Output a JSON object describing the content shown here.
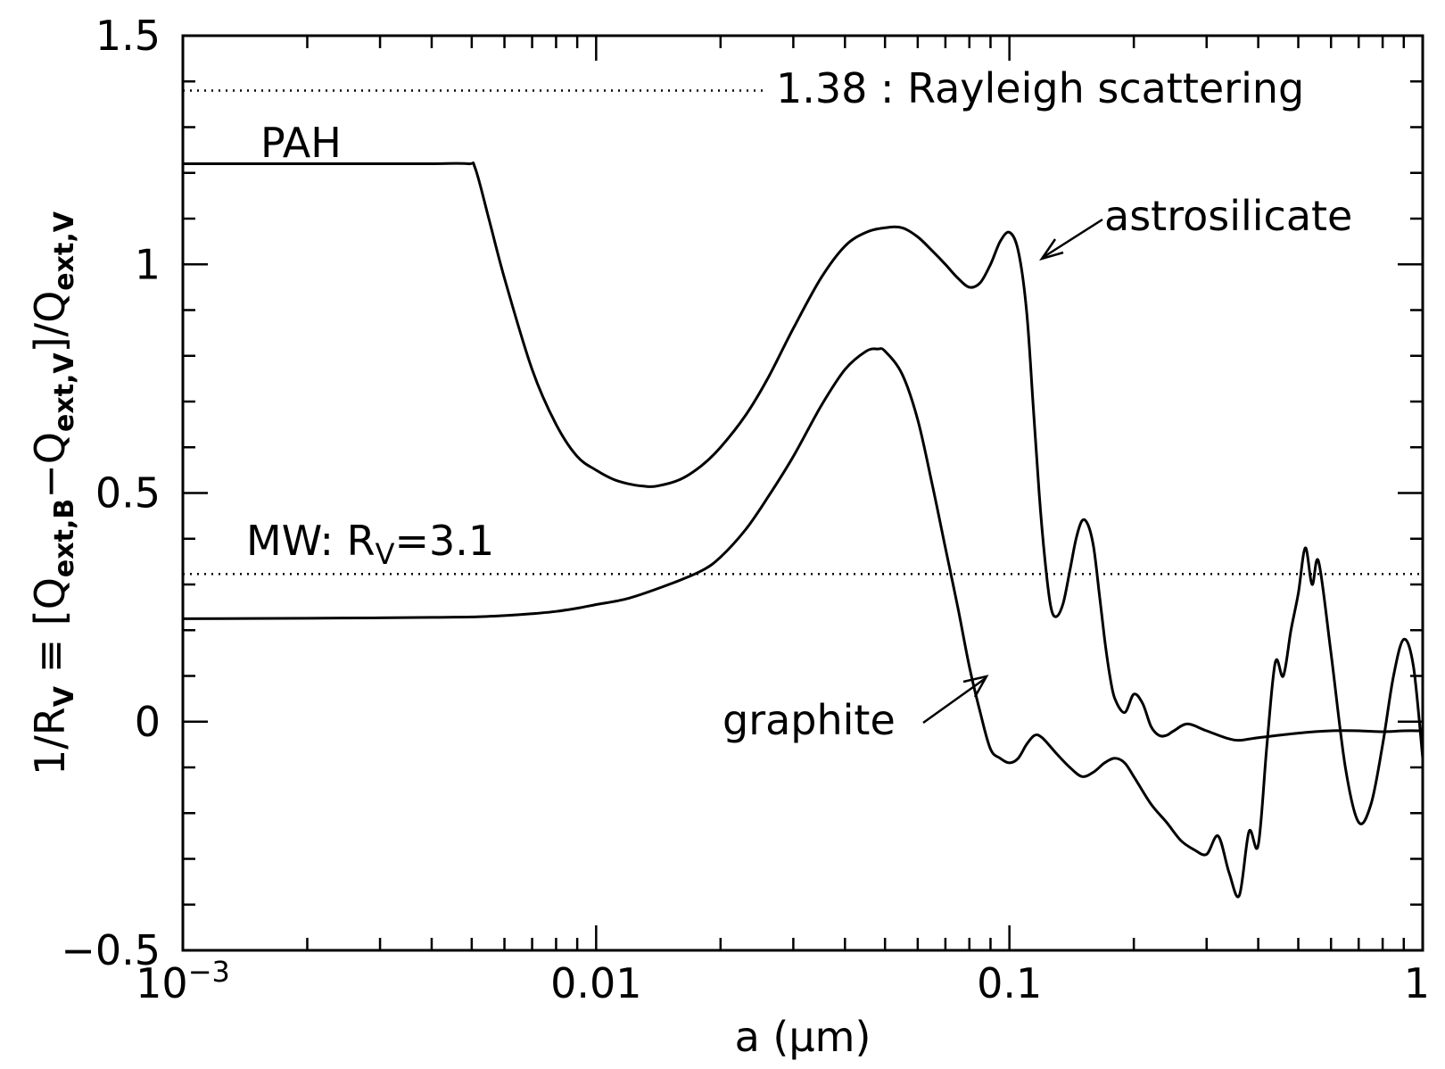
{
  "chart_data": {
    "type": "line",
    "title": "",
    "xlabel": "a (μm)",
    "ylabel": "1/R_V ≡ [Q_ext,B − Q_ext,V]/Q_ext,V",
    "x_scale": "log",
    "xlim": [
      0.001,
      1
    ],
    "ylim": [
      -0.5,
      1.5
    ],
    "grid": false,
    "x_ticks": [
      {
        "value": 0.001,
        "label": "10",
        "sup": "−3"
      },
      {
        "value": 0.01,
        "label": "0.01",
        "sup": ""
      },
      {
        "value": 0.1,
        "label": "0.1",
        "sup": ""
      },
      {
        "value": 1,
        "label": "1",
        "sup": ""
      }
    ],
    "y_ticks": [
      {
        "value": -0.5,
        "label": "−0.5"
      },
      {
        "value": 0,
        "label": "0"
      },
      {
        "value": 0.5,
        "label": "0.5"
      },
      {
        "value": 1,
        "label": "1"
      },
      {
        "value": 1.5,
        "label": "1.5"
      }
    ],
    "series": [
      {
        "name": "PAH / astrosilicate",
        "x": [
          0.001,
          0.002,
          0.003,
          0.004,
          0.0049,
          0.0051,
          0.0055,
          0.006,
          0.007,
          0.008,
          0.009,
          0.01,
          0.011,
          0.012,
          0.013,
          0.014,
          0.016,
          0.018,
          0.02,
          0.023,
          0.026,
          0.03,
          0.035,
          0.04,
          0.045,
          0.05,
          0.055,
          0.06,
          0.065,
          0.07,
          0.075,
          0.08,
          0.085,
          0.09,
          0.095,
          0.1,
          0.105,
          0.11,
          0.114,
          0.118,
          0.122,
          0.126,
          0.13,
          0.135,
          0.14,
          0.145,
          0.15,
          0.155,
          0.16,
          0.165,
          0.17,
          0.175,
          0.18,
          0.19,
          0.2,
          0.21,
          0.22,
          0.23,
          0.24,
          0.25,
          0.27,
          0.3,
          0.35,
          0.4,
          0.5,
          0.6,
          0.7,
          0.8,
          0.9,
          1.0
        ],
        "y": [
          1.22,
          1.22,
          1.22,
          1.22,
          1.22,
          1.21,
          1.1,
          0.97,
          0.77,
          0.65,
          0.58,
          0.55,
          0.53,
          0.52,
          0.515,
          0.515,
          0.53,
          0.56,
          0.6,
          0.67,
          0.75,
          0.86,
          0.97,
          1.04,
          1.07,
          1.08,
          1.08,
          1.06,
          1.03,
          1.0,
          0.97,
          0.95,
          0.96,
          1.0,
          1.05,
          1.07,
          1.03,
          0.9,
          0.7,
          0.5,
          0.35,
          0.25,
          0.23,
          0.26,
          0.33,
          0.4,
          0.44,
          0.43,
          0.38,
          0.28,
          0.18,
          0.1,
          0.05,
          0.02,
          0.06,
          0.04,
          -0.01,
          -0.03,
          -0.03,
          -0.02,
          -0.005,
          -0.02,
          -0.04,
          -0.035,
          -0.025,
          -0.02,
          -0.02,
          -0.022,
          -0.02,
          -0.02
        ]
      },
      {
        "name": "graphite",
        "x": [
          0.001,
          0.002,
          0.003,
          0.004,
          0.005,
          0.006,
          0.007,
          0.008,
          0.009,
          0.01,
          0.012,
          0.015,
          0.018,
          0.02,
          0.023,
          0.026,
          0.03,
          0.035,
          0.04,
          0.045,
          0.048,
          0.05,
          0.055,
          0.06,
          0.065,
          0.07,
          0.075,
          0.08,
          0.085,
          0.09,
          0.095,
          0.1,
          0.105,
          0.11,
          0.115,
          0.12,
          0.13,
          0.14,
          0.15,
          0.16,
          0.17,
          0.18,
          0.19,
          0.2,
          0.22,
          0.24,
          0.26,
          0.28,
          0.3,
          0.32,
          0.34,
          0.36,
          0.38,
          0.4,
          0.42,
          0.44,
          0.46,
          0.48,
          0.5,
          0.52,
          0.54,
          0.56,
          0.6,
          0.65,
          0.7,
          0.75,
          0.8,
          0.85,
          0.9,
          0.95,
          1.0
        ],
        "y": [
          0.225,
          0.226,
          0.227,
          0.228,
          0.229,
          0.232,
          0.236,
          0.241,
          0.248,
          0.256,
          0.27,
          0.3,
          0.33,
          0.36,
          0.42,
          0.49,
          0.58,
          0.69,
          0.77,
          0.81,
          0.815,
          0.81,
          0.76,
          0.66,
          0.52,
          0.38,
          0.25,
          0.12,
          0.02,
          -0.06,
          -0.08,
          -0.09,
          -0.08,
          -0.05,
          -0.03,
          -0.035,
          -0.07,
          -0.1,
          -0.12,
          -0.11,
          -0.09,
          -0.08,
          -0.09,
          -0.12,
          -0.18,
          -0.22,
          -0.26,
          -0.28,
          -0.29,
          -0.25,
          -0.33,
          -0.38,
          -0.24,
          -0.27,
          -0.05,
          0.13,
          0.1,
          0.2,
          0.28,
          0.38,
          0.3,
          0.35,
          0.15,
          -0.1,
          -0.22,
          -0.18,
          -0.05,
          0.1,
          0.18,
          0.12,
          -0.08
        ]
      }
    ],
    "reference_lines": [
      {
        "y": 1.38,
        "label": "1.38 : Rayleigh scattering"
      },
      {
        "y": 0.323,
        "label": "MW: R"
      }
    ],
    "annotations": {
      "pah": "PAH",
      "astrosilicate": "astrosilicate",
      "graphite": "graphite",
      "mw_prefix": "MW: R",
      "mw_sub": "V",
      "mw_suffix": "=3.1",
      "rayleigh": "1.38 : Rayleigh scattering"
    },
    "ylabel_parts": {
      "a": "1/R",
      "a_sub": "V",
      "b": " ≡ [Q",
      "b_sub": "ext,B",
      "c": "−Q",
      "c_sub": "ext,V",
      "d": "]/Q",
      "d_sub": "ext,V"
    }
  }
}
